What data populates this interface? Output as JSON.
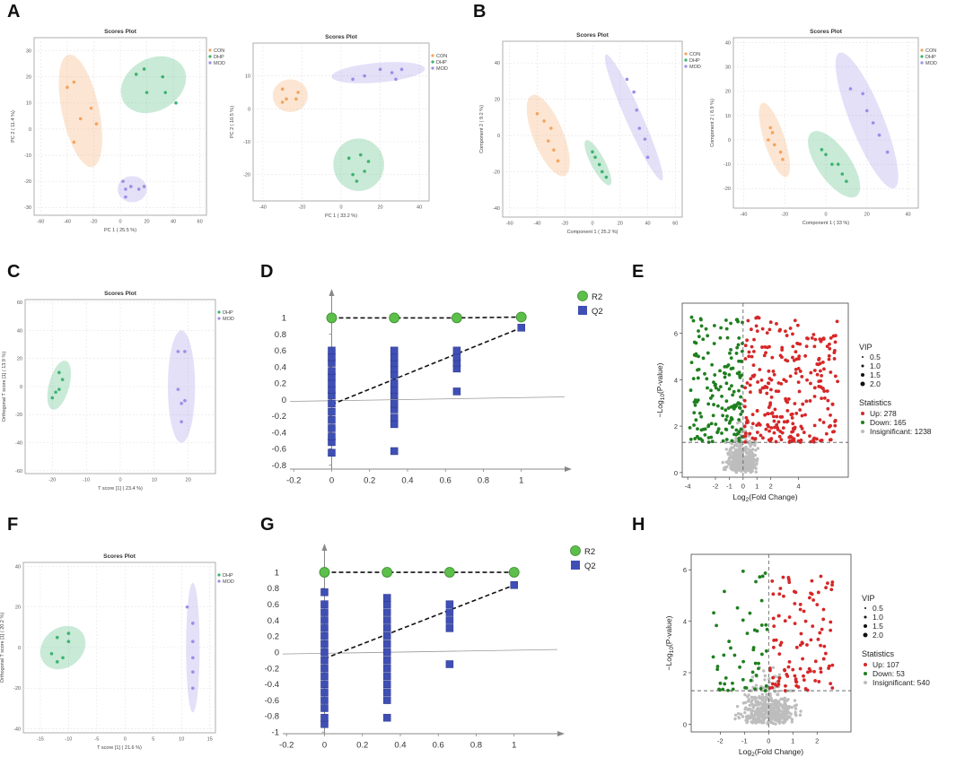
{
  "panel_letters": {
    "A": "A",
    "B": "B",
    "C": "C",
    "D": "D",
    "E": "E",
    "F": "F",
    "G": "G",
    "H": "H"
  },
  "colors": {
    "CON": "#f4a460",
    "DHP": "#3cb371",
    "MOD": "#9b8ee6",
    "R2": "#5cbf4a",
    "Q2": "#3f4fb5",
    "Up": "#d62728",
    "Down": "#1f7f1f",
    "Insig": "#bdbdbd"
  },
  "chart_data": [
    {
      "id": "A1",
      "type": "scatter",
      "title": "Scores Plot",
      "xlabel": "PC 1 ( 25.5 %)",
      "ylabel": "PC 2 ( 11.4 %)",
      "xlim": [
        -65,
        65
      ],
      "ylim": [
        -33,
        35
      ],
      "xticks": [
        -60,
        -40,
        -20,
        0,
        20,
        40,
        60
      ],
      "yticks": [
        -30,
        -20,
        -10,
        0,
        10,
        20,
        30
      ],
      "legend": [
        "CON",
        "DHP",
        "MOD"
      ],
      "series": [
        {
          "name": "CON",
          "points": [
            [
              -40,
              16
            ],
            [
              -35,
              18
            ],
            [
              -30,
              4
            ],
            [
              -22,
              8
            ],
            [
              -18,
              2
            ],
            [
              -35,
              -5
            ]
          ],
          "ellipse": {
            "cx": -30,
            "cy": 7,
            "rx": 14,
            "ry": 22,
            "rot": -12
          }
        },
        {
          "name": "DHP",
          "points": [
            [
              12,
              21
            ],
            [
              18,
              23
            ],
            [
              20,
              14
            ],
            [
              32,
              20
            ],
            [
              34,
              14
            ],
            [
              42,
              10
            ]
          ],
          "ellipse": {
            "cx": 25,
            "cy": 17,
            "rx": 26,
            "ry": 10,
            "rot": -30
          }
        },
        {
          "name": "MOD",
          "points": [
            [
              2,
              -20
            ],
            [
              4,
              -23
            ],
            [
              8,
              -22
            ],
            [
              14,
              -23
            ],
            [
              18,
              -22
            ],
            [
              4,
              -26
            ]
          ],
          "ellipse": {
            "cx": 9,
            "cy": -23,
            "rx": 11,
            "ry": 5,
            "rot": 0
          }
        }
      ]
    },
    {
      "id": "A2",
      "type": "scatter",
      "title": "Scores Plot",
      "xlabel": "PC 1 ( 33.2 %)",
      "ylabel": "PC 2 ( 10.5 %)",
      "xlim": [
        -45,
        45
      ],
      "ylim": [
        -28,
        20
      ],
      "xticks": [
        -40,
        -20,
        0,
        20,
        40
      ],
      "yticks": [
        -20,
        -10,
        0,
        10
      ],
      "legend": [
        "CON",
        "DHP",
        "MOD"
      ],
      "series": [
        {
          "name": "CON",
          "points": [
            [
              -30,
              6
            ],
            [
              -28,
              3
            ],
            [
              -22,
              5
            ],
            [
              -30,
              2
            ],
            [
              -23,
              3
            ]
          ],
          "ellipse": {
            "cx": -26,
            "cy": 4,
            "rx": 9,
            "ry": 5,
            "rot": 0
          }
        },
        {
          "name": "DHP",
          "points": [
            [
              4,
              -15
            ],
            [
              10,
              -14
            ],
            [
              14,
              -16
            ],
            [
              6,
              -20
            ],
            [
              12,
              -19
            ],
            [
              8,
              -22
            ]
          ],
          "ellipse": {
            "cx": 9,
            "cy": -17,
            "rx": 13,
            "ry": 8,
            "rot": 0
          }
        },
        {
          "name": "MOD",
          "points": [
            [
              6,
              9
            ],
            [
              12,
              10
            ],
            [
              20,
              12
            ],
            [
              26,
              11
            ],
            [
              31,
              12
            ],
            [
              28,
              9
            ]
          ],
          "ellipse": {
            "cx": 19,
            "cy": 11,
            "rx": 24,
            "ry": 3,
            "rot": -5
          }
        }
      ]
    },
    {
      "id": "B1",
      "type": "scatter",
      "title": "Scores Plot",
      "xlabel": "Component 1 ( 25.2 %)",
      "ylabel": "Component 2 ( 9.2 %)",
      "xlim": [
        -65,
        65
      ],
      "ylim": [
        -45,
        52
      ],
      "xticks": [
        -60,
        -40,
        -20,
        0,
        20,
        40,
        60
      ],
      "yticks": [
        -40,
        -20,
        0,
        20,
        40
      ],
      "legend": [
        "CON",
        "DHP",
        "MOD"
      ],
      "series": [
        {
          "name": "CON",
          "points": [
            [
              -40,
              12
            ],
            [
              -35,
              8
            ],
            [
              -30,
              4
            ],
            [
              -32,
              -3
            ],
            [
              -28,
              -8
            ],
            [
              -25,
              -14
            ]
          ],
          "ellipse": {
            "cx": -32,
            "cy": 0,
            "rx": 11,
            "ry": 24,
            "rot": -22
          }
        },
        {
          "name": "DHP",
          "points": [
            [
              0,
              -9
            ],
            [
              2,
              -12
            ],
            [
              5,
              -16
            ],
            [
              7,
              -20
            ],
            [
              10,
              -23
            ]
          ],
          "ellipse": {
            "cx": 4,
            "cy": -15,
            "rx": 5,
            "ry": 14,
            "rot": -28
          }
        },
        {
          "name": "MOD",
          "points": [
            [
              25,
              31
            ],
            [
              30,
              24
            ],
            [
              32,
              14
            ],
            [
              34,
              4
            ],
            [
              38,
              -2
            ],
            [
              40,
              -12
            ]
          ],
          "ellipse": {
            "cx": 30,
            "cy": 10,
            "rx": 6,
            "ry": 38,
            "rot": -24
          }
        }
      ]
    },
    {
      "id": "B2",
      "type": "scatter",
      "title": "Scores Plot",
      "xlabel": "Component 1 ( 33 %)",
      "ylabel": "Component 2 ( 8.9 %)",
      "xlim": [
        -45,
        45
      ],
      "ylim": [
        -28,
        42
      ],
      "xticks": [
        -40,
        -20,
        0,
        20,
        40
      ],
      "yticks": [
        -20,
        -10,
        0,
        10,
        20,
        30,
        40
      ],
      "legend": [
        "CON",
        "DHP",
        "MOD"
      ],
      "series": [
        {
          "name": "CON",
          "points": [
            [
              -27,
              5
            ],
            [
              -26,
              3
            ],
            [
              -28,
              0
            ],
            [
              -25,
              -2
            ],
            [
              -22,
              -5
            ],
            [
              -21,
              -8
            ]
          ],
          "ellipse": {
            "cx": -25,
            "cy": 0,
            "rx": 5,
            "ry": 16,
            "rot": -18
          }
        },
        {
          "name": "DHP",
          "points": [
            [
              -2,
              -4
            ],
            [
              0,
              -6
            ],
            [
              3,
              -10
            ],
            [
              6,
              -10
            ],
            [
              8,
              -14
            ],
            [
              10,
              -17
            ]
          ],
          "ellipse": {
            "cx": 4,
            "cy": -10,
            "rx": 8,
            "ry": 16,
            "rot": -35
          }
        },
        {
          "name": "MOD",
          "points": [
            [
              12,
              21
            ],
            [
              18,
              19
            ],
            [
              20,
              12
            ],
            [
              23,
              7
            ],
            [
              26,
              2
            ],
            [
              30,
              -5
            ]
          ],
          "ellipse": {
            "cx": 20,
            "cy": 8,
            "rx": 8,
            "ry": 30,
            "rot": -22
          }
        }
      ]
    },
    {
      "id": "C",
      "type": "scatter",
      "title": "Scores Plot",
      "xlabel": "T score [1] ( 23.4 %)",
      "ylabel": "Orthogonal T score [1] ( 13.9 %)",
      "xlim": [
        -28,
        28
      ],
      "ylim": [
        -62,
        62
      ],
      "xticks": [
        -20,
        -10,
        0,
        10,
        20
      ],
      "yticks": [
        -60,
        -40,
        -20,
        0,
        20,
        40,
        60
      ],
      "legend": [
        "DHP",
        "MOD"
      ],
      "series": [
        {
          "name": "DHP",
          "points": [
            [
              -18,
              10
            ],
            [
              -17,
              5
            ],
            [
              -18,
              -2
            ],
            [
              -19,
              -4
            ],
            [
              -20,
              -8
            ]
          ],
          "ellipse": {
            "cx": -18,
            "cy": 1,
            "rx": 3,
            "ry": 18,
            "rot": 15
          }
        },
        {
          "name": "MOD",
          "points": [
            [
              17,
              25
            ],
            [
              19,
              25
            ],
            [
              17,
              -2
            ],
            [
              18,
              -12
            ],
            [
              19,
              -10
            ],
            [
              18,
              -25
            ]
          ],
          "ellipse": {
            "cx": 18,
            "cy": 0,
            "rx": 4,
            "ry": 40,
            "rot": 0
          }
        }
      ]
    },
    {
      "id": "D",
      "type": "scatter",
      "title": "",
      "xlabel": "",
      "ylabel": "",
      "xlim": [
        -0.22,
        1.2
      ],
      "ylim": [
        -0.85,
        1.18
      ],
      "xticks": [
        -0.2,
        0,
        0.2,
        0.4,
        0.6,
        0.8,
        1
      ],
      "yticks": [
        -0.8,
        -0.6,
        -0.4,
        -0.2,
        0,
        0.2,
        0.4,
        0.6,
        0.8,
        1
      ],
      "legend": [
        "R2",
        "Q2"
      ],
      "R2": {
        "x": [
          0,
          0.33,
          0.66,
          1
        ],
        "y": [
          1,
          1,
          1,
          1.01
        ]
      },
      "Q2": {
        "x": [
          0,
          0.33,
          0.66,
          1
        ],
        "columns": [
          [
            -0.65,
            -0.52,
            -0.45,
            -0.35,
            -0.25,
            -0.15,
            -0.05,
            0.05,
            0.12,
            0.2,
            0.28,
            0.35,
            0.45,
            0.52,
            0.6
          ],
          [
            -0.63,
            -0.3,
            -0.22,
            -0.12,
            -0.05,
            0.05,
            0.12,
            0.2,
            0.3,
            0.38,
            0.45,
            0.52,
            0.6
          ],
          [
            0.1,
            0.38,
            0.45,
            0.52,
            0.6
          ],
          [
            0.88
          ]
        ]
      },
      "Q2_line": [
        [
          0,
          -0.06
        ],
        [
          1,
          0.88
        ]
      ]
    },
    {
      "id": "E",
      "type": "scatter",
      "title": "",
      "xlabel": "Log2(Fold Change)",
      "ylabel": "-Log10(P-value)",
      "xlim": [
        -4.4,
        7.6
      ],
      "ylim": [
        -0.2,
        7.3
      ],
      "xticks": [
        -4,
        -2,
        -1,
        0,
        1,
        2,
        4
      ],
      "yticks": [
        0,
        2,
        4,
        6
      ],
      "threshold_y": 1.3,
      "legend_title": "VIP",
      "vip_sizes": [
        "0.5",
        "1.0",
        "1.5",
        "2.0"
      ],
      "stats_title": "Statistics",
      "stats": [
        "Up: 278",
        "Down: 165",
        "Insignificant: 1238"
      ],
      "counts": {
        "up": 278,
        "down": 165,
        "insignificant": 1238
      },
      "seed": 7
    },
    {
      "id": "F",
      "type": "scatter",
      "title": "Scores Plot",
      "xlabel": "T score [1] ( 21.6 %)",
      "ylabel": "Orthogonal T score [1] ( 20.2 %)",
      "xlim": [
        -18,
        16
      ],
      "ylim": [
        -42,
        42
      ],
      "xticks": [
        -15,
        -10,
        -5,
        0,
        5,
        10,
        15
      ],
      "yticks": [
        -40,
        -20,
        0,
        20,
        40
      ],
      "legend": [
        "DHP",
        "MOD"
      ],
      "series": [
        {
          "name": "DHP",
          "points": [
            [
              -10,
              7
            ],
            [
              -12,
              5
            ],
            [
              -10,
              3
            ],
            [
              -13,
              -3
            ],
            [
              -11,
              -5
            ],
            [
              -12,
              -7
            ]
          ],
          "ellipse": {
            "cx": -11,
            "cy": 0,
            "rx": 3.5,
            "ry": 12,
            "rot": 50
          }
        },
        {
          "name": "MOD",
          "points": [
            [
              11,
              20
            ],
            [
              12,
              12
            ],
            [
              12,
              3
            ],
            [
              12,
              -5
            ],
            [
              12,
              -12
            ],
            [
              12,
              -20
            ]
          ],
          "ellipse": {
            "cx": 12,
            "cy": 0,
            "rx": 1.2,
            "ry": 32,
            "rot": 0
          }
        }
      ]
    },
    {
      "id": "G",
      "type": "scatter",
      "title": "",
      "xlabel": "",
      "ylabel": "",
      "xlim": [
        -0.22,
        1.2
      ],
      "ylim": [
        -1.02,
        1.18
      ],
      "xticks": [
        -0.2,
        0,
        0.2,
        0.4,
        0.6,
        0.8,
        1
      ],
      "yticks": [
        -1,
        -0.8,
        -0.6,
        -0.4,
        -0.2,
        0,
        0.2,
        0.4,
        0.6,
        0.8,
        1
      ],
      "legend": [
        "R2",
        "Q2"
      ],
      "R2": {
        "x": [
          0,
          0.33,
          0.66,
          1
        ],
        "y": [
          1,
          1,
          1,
          1
        ]
      },
      "Q2": {
        "x": [
          0,
          0.33,
          0.66,
          1
        ],
        "columns": [
          [
            -0.9,
            -0.82,
            -0.7,
            -0.6,
            -0.5,
            -0.4,
            -0.3,
            -0.2,
            -0.1,
            0,
            0.1,
            0.2,
            0.3,
            0.4,
            0.5,
            0.6,
            0.75
          ],
          [
            -0.82,
            -0.6,
            -0.5,
            -0.4,
            -0.3,
            -0.2,
            -0.1,
            0,
            0.1,
            0.2,
            0.3,
            0.4,
            0.5,
            0.6,
            0.68
          ],
          [
            -0.15,
            0.3,
            0.4,
            0.5,
            0.6
          ],
          [
            0.84
          ]
        ]
      },
      "Q2_line": [
        [
          0,
          -0.08
        ],
        [
          1,
          0.84
        ]
      ]
    },
    {
      "id": "H",
      "type": "scatter",
      "title": "",
      "xlabel": "Log2(Fold Change)",
      "ylabel": "-Log10(P-value)",
      "xlim": [
        -3.2,
        3.4
      ],
      "ylim": [
        -0.3,
        6.6
      ],
      "xticks": [
        -2,
        -1,
        0,
        1,
        2
      ],
      "yticks": [
        0,
        2,
        4,
        6
      ],
      "threshold_y": 1.3,
      "legend_title": "VIP",
      "vip_sizes": [
        "0.5",
        "1.0",
        "1.5",
        "2.0"
      ],
      "stats_title": "Statistics",
      "stats": [
        "Up: 107",
        "Down: 53",
        "Insignificant: 540"
      ],
      "counts": {
        "up": 107,
        "down": 53,
        "insignificant": 540
      },
      "seed": 13
    }
  ]
}
